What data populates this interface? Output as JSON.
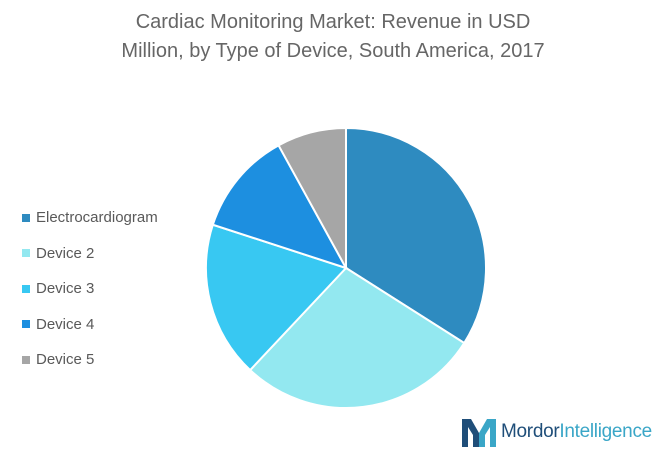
{
  "title": {
    "line1": "Cardiac Monitoring Market: Revenue in USD",
    "line2": "Million, by Type of Device, South America, 2017"
  },
  "chart_data": {
    "type": "pie",
    "title": "Cardiac Monitoring Market: Revenue in USD Million, by Type of Device, South America, 2017",
    "series": [
      {
        "name": "Electrocardiogram",
        "value": 34,
        "color": "#2e8bc0"
      },
      {
        "name": "Device 2",
        "value": 28,
        "color": "#93e8f0"
      },
      {
        "name": "Device 3",
        "value": 18,
        "color": "#38c8f2"
      },
      {
        "name": "Device 4",
        "value": 12,
        "color": "#1d8fe0"
      },
      {
        "name": "Device 5",
        "value": 8,
        "color": "#a6a6a6"
      }
    ],
    "legend_position": "left",
    "start_angle": "12 o'clock",
    "direction": "clockwise"
  },
  "brand": {
    "name_part1": "Mordor",
    "name_part2": "Intelligence",
    "icon": "mordor-intelligence-logo-icon"
  }
}
